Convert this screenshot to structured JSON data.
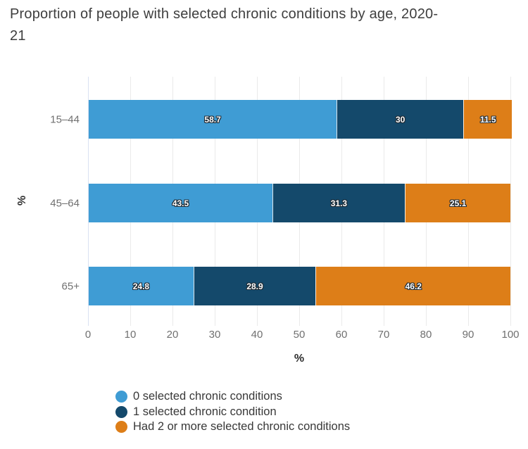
{
  "header": {
    "title_line1": "Proportion of people with selected chronic conditions by age, 2020-",
    "title_line2": "21"
  },
  "chart_data": {
    "type": "bar",
    "stacked": true,
    "orientation": "horizontal",
    "title": "Proportion of people with selected chronic conditions by age, 2020-21",
    "categories": [
      "15–44",
      "45–64",
      "65+"
    ],
    "series": [
      {
        "name": "0 selected chronic conditions",
        "color": "#3f9cd4",
        "values": [
          58.7,
          43.5,
          24.8
        ]
      },
      {
        "name": "1 selected chronic condition",
        "color": "#14496b",
        "values": [
          30,
          31.3,
          28.9
        ]
      },
      {
        "name": "Had 2 or more selected chronic conditions",
        "color": "#dd7e18",
        "values": [
          11.5,
          25.1,
          46.2
        ]
      }
    ],
    "xlabel": "%",
    "ylabel": "%",
    "xlim": [
      0,
      100
    ],
    "xticks": [
      0,
      10,
      20,
      30,
      40,
      50,
      60,
      70,
      80,
      90,
      100
    ],
    "grid": true,
    "gridline_color": "#eaeaea",
    "axis_line_color": "#d9e1f2",
    "bar_label_color": "#ffffff",
    "legend_position": "bottom"
  }
}
